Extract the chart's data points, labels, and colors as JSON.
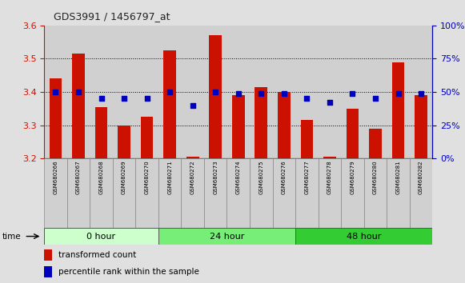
{
  "title": "GDS3991 / 1456797_at",
  "samples": [
    "GSM680266",
    "GSM680267",
    "GSM680268",
    "GSM680269",
    "GSM680270",
    "GSM680271",
    "GSM680272",
    "GSM680273",
    "GSM680274",
    "GSM680275",
    "GSM680276",
    "GSM680277",
    "GSM680278",
    "GSM680279",
    "GSM680280",
    "GSM680281",
    "GSM680282"
  ],
  "transformed_count": [
    3.44,
    3.515,
    3.355,
    3.3,
    3.325,
    3.525,
    3.205,
    3.57,
    3.39,
    3.415,
    3.4,
    3.315,
    3.205,
    3.35,
    3.29,
    3.49,
    3.39
  ],
  "percentile_rank": [
    50,
    50,
    45,
    45,
    45,
    50,
    40,
    50,
    49,
    49,
    49,
    45,
    42,
    49,
    45,
    49,
    49
  ],
  "groups": [
    {
      "label": "0 hour",
      "start": 0,
      "end": 5,
      "color": "#ccffcc"
    },
    {
      "label": "24 hour",
      "start": 5,
      "end": 11,
      "color": "#77ee77"
    },
    {
      "label": "48 hour",
      "start": 11,
      "end": 17,
      "color": "#33cc33"
    }
  ],
  "ylim_left": [
    3.2,
    3.6
  ],
  "ylim_right": [
    0,
    100
  ],
  "bar_color": "#cc1100",
  "dot_color": "#0000bb",
  "col_bg_color": "#d0d0d0",
  "plot_bg_color": "#ffffff",
  "left_tick_color": "#cc1100",
  "right_tick_color": "#0000bb",
  "fig_bg_color": "#e0e0e0"
}
